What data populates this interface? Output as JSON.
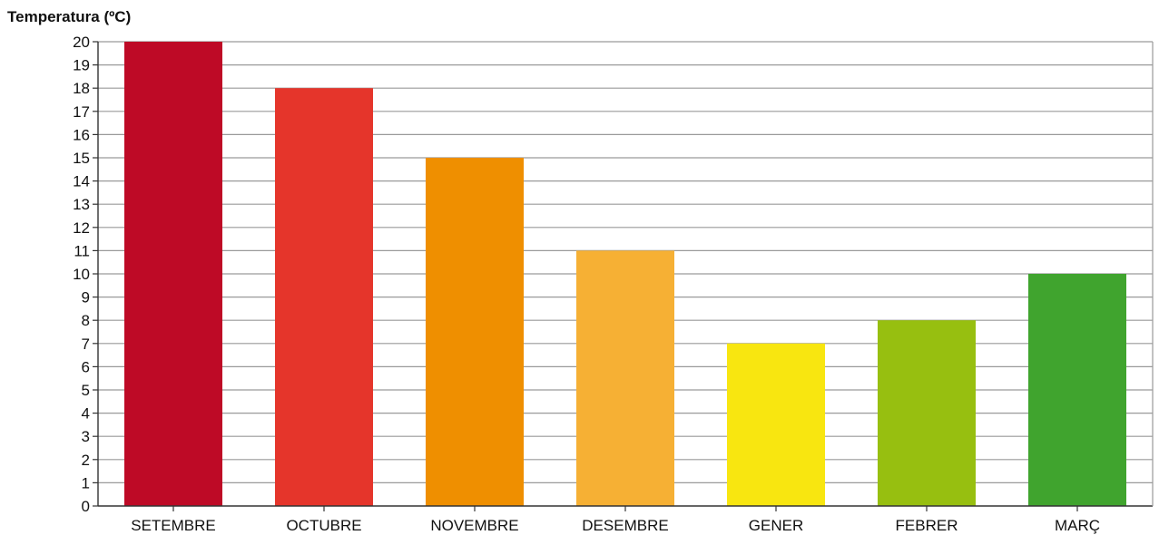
{
  "chart_data": {
    "type": "bar",
    "ylabel": "Temperatura (ºC)",
    "xlabel": "",
    "ylim": [
      0,
      20
    ],
    "yticks": [
      0,
      1,
      2,
      3,
      4,
      5,
      6,
      7,
      8,
      9,
      10,
      11,
      12,
      13,
      14,
      15,
      16,
      17,
      18,
      19,
      20
    ],
    "grid": true,
    "legend": "none",
    "categories": [
      "SETEMBRE",
      "OCTUBRE",
      "NOVEMBRE",
      "DESEMBRE",
      "GENER",
      "FEBRER",
      "MARÇ"
    ],
    "values": [
      20,
      18,
      15,
      11,
      7,
      8,
      10
    ],
    "colors": [
      "#be0a26",
      "#e5352b",
      "#ef8f00",
      "#f6b034",
      "#f8e610",
      "#97bf10",
      "#40a42e"
    ]
  }
}
